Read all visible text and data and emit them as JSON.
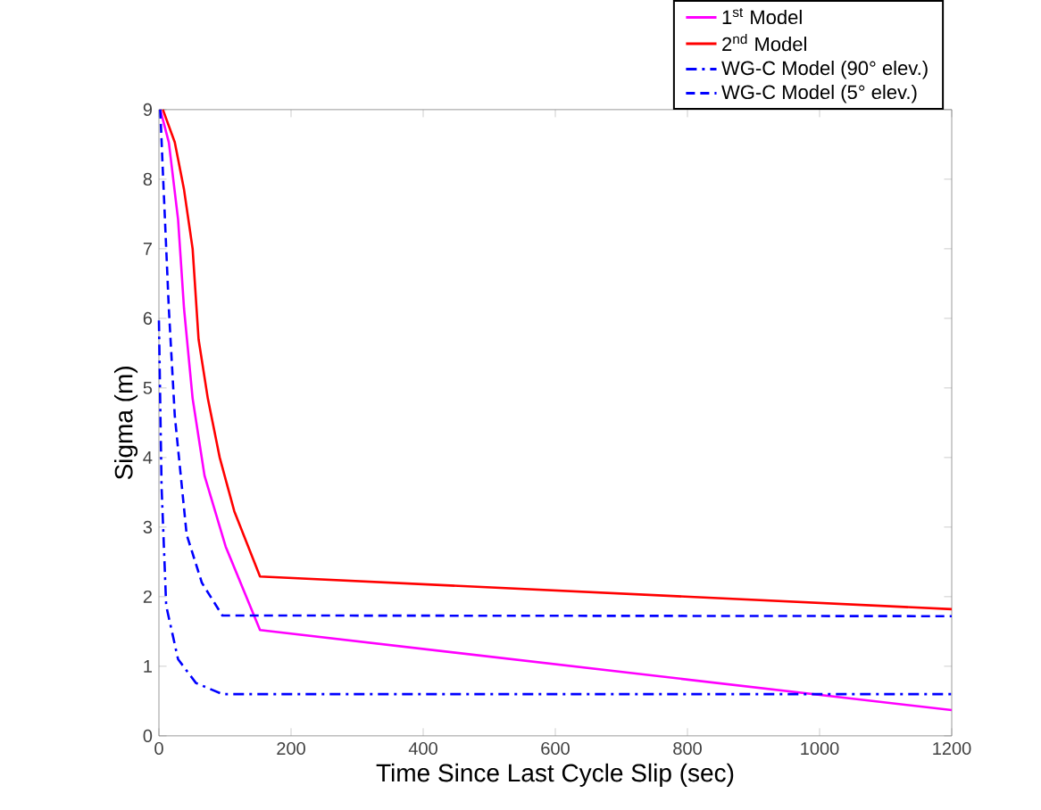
{
  "chart_data": {
    "type": "line",
    "xlabel": "Time Since Last Cycle Slip (sec)",
    "ylabel": "Sigma (m)",
    "xlim": [
      0,
      1200
    ],
    "ylim": [
      0,
      9
    ],
    "xticks": [
      0,
      200,
      400,
      600,
      800,
      1000,
      1200
    ],
    "yticks": [
      0,
      1,
      2,
      3,
      4,
      5,
      6,
      7,
      8,
      9
    ],
    "grid": false,
    "legend": "top right",
    "marker": "none",
    "series": [
      {
        "name": "1$^{st}$ Model",
        "color": "#ff00ff",
        "line_style": "solid",
        "x": [
          2,
          15,
          29,
          38,
          51,
          69,
          101,
          153,
          1200
        ],
        "values": [
          9,
          8.53,
          7.42,
          6.14,
          4.85,
          3.74,
          2.72,
          1.52,
          0.37
        ]
      },
      {
        "name": "2$^{nd}$ Model",
        "color": "#ff0000",
        "line_style": "solid",
        "x": [
          6,
          24,
          38,
          51,
          60,
          74,
          92,
          114,
          153,
          1200
        ],
        "values": [
          9,
          8.53,
          7.85,
          7.0,
          5.7,
          4.85,
          4.0,
          3.23,
          2.29,
          1.82
        ]
      },
      {
        "name": "WG-C Model (90° elev.)",
        "color": "#0000ff",
        "line_style": "dashdot",
        "x": [
          0,
          4,
          11,
          29,
          56,
          96,
          1200
        ],
        "values": [
          5.97,
          3.58,
          1.87,
          1.1,
          0.76,
          0.6,
          0.6
        ]
      },
      {
        "name": "WG-C Model (5° elev.)",
        "color": "#0000ff",
        "line_style": "dashed",
        "x": [
          2,
          6,
          15,
          24,
          42,
          65,
          96,
          1200
        ],
        "values": [
          9,
          8.1,
          6.14,
          4.6,
          2.89,
          2.2,
          1.73,
          1.72
        ]
      }
    ]
  }
}
